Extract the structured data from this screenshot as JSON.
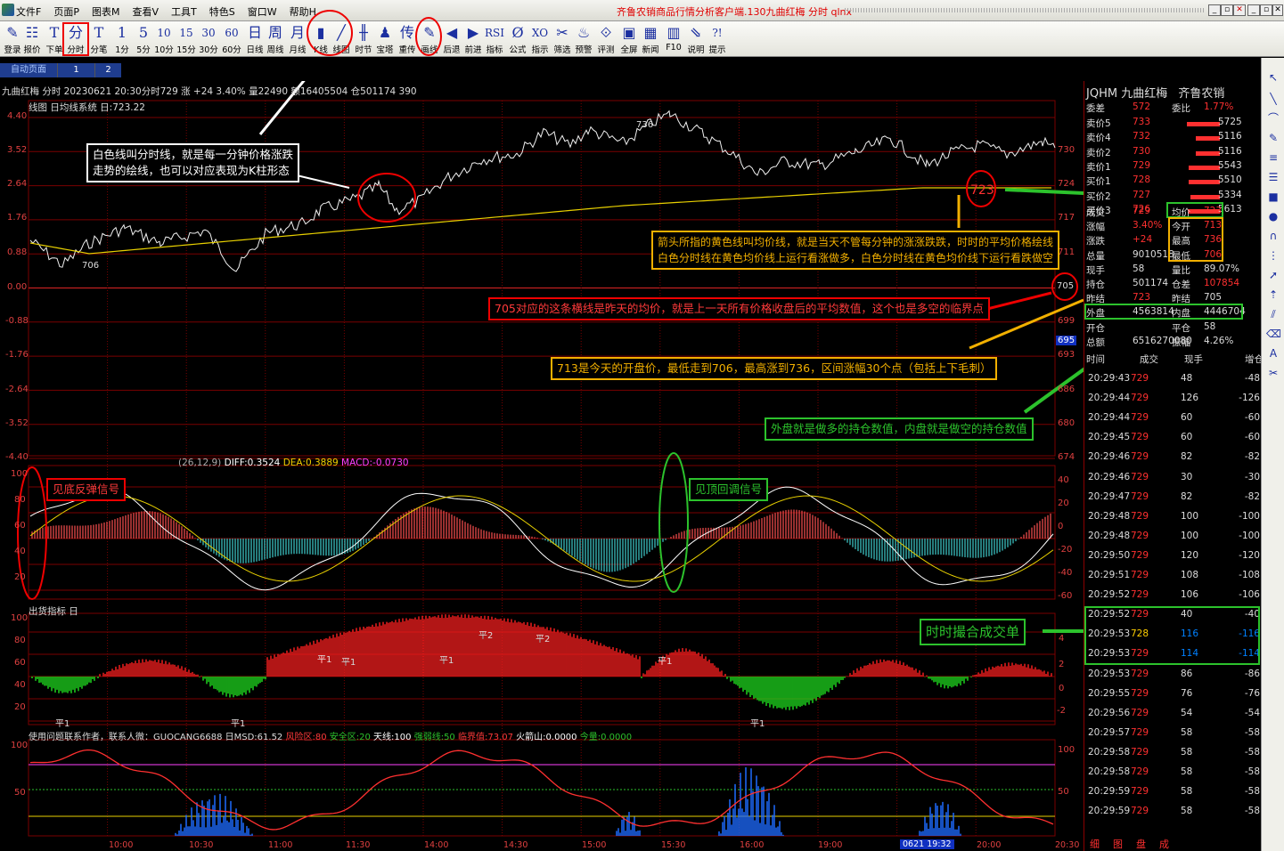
{
  "menu": {
    "items": [
      "文件F",
      "页面P",
      "图表M",
      "查看V",
      "工具T",
      "特色S",
      "窗口W",
      "帮助H"
    ],
    "window_title": "齐鲁农销商品行情分析客户端.130九曲红梅 分时 qlnx",
    "controls": [
      "_",
      "▫",
      "✕",
      "_",
      "▫",
      "✕"
    ]
  },
  "toolbar": [
    {
      "icon": "login-icon",
      "glyph": "✎",
      "label": "登录"
    },
    {
      "icon": "quote-icon",
      "glyph": "☷",
      "label": "报价"
    },
    {
      "icon": "order-icon",
      "glyph": "T",
      "label": "下单"
    },
    {
      "icon": "intraday-icon",
      "glyph": "分",
      "label": "分时"
    },
    {
      "icon": "tick-icon",
      "glyph": "T",
      "label": "分笔"
    },
    {
      "icon": "k1-icon",
      "glyph": "1",
      "label": "1分"
    },
    {
      "icon": "k5-icon",
      "glyph": "5",
      "label": "5分"
    },
    {
      "icon": "k10-icon",
      "glyph": "10",
      "label": "10分"
    },
    {
      "icon": "k15-icon",
      "glyph": "15",
      "label": "15分"
    },
    {
      "icon": "k30-icon",
      "glyph": "30",
      "label": "30分"
    },
    {
      "icon": "k60-icon",
      "glyph": "60",
      "label": "60分"
    },
    {
      "icon": "day-icon",
      "glyph": "日",
      "label": "日线"
    },
    {
      "icon": "week-icon",
      "glyph": "周",
      "label": "周线"
    },
    {
      "icon": "month-icon",
      "glyph": "月",
      "label": "月线"
    },
    {
      "icon": "kline-icon",
      "glyph": "▮",
      "label": "K线"
    },
    {
      "icon": "line-chart-icon",
      "glyph": "╱",
      "label": "线图"
    },
    {
      "icon": "period-icon",
      "glyph": "╫",
      "label": "时节"
    },
    {
      "icon": "tower-icon",
      "glyph": "♟",
      "label": "宝塔"
    },
    {
      "icon": "transmit-icon",
      "glyph": "传",
      "label": "重传"
    },
    {
      "icon": "draw-icon",
      "glyph": "✎",
      "label": "画线"
    },
    {
      "icon": "back-icon",
      "glyph": "◀",
      "label": "后退"
    },
    {
      "icon": "forward-icon",
      "glyph": "▶",
      "label": "前进"
    },
    {
      "icon": "indicator-icon",
      "glyph": "RSI",
      "label": "指标"
    },
    {
      "icon": "formula-icon",
      "glyph": "Ø",
      "label": "公式"
    },
    {
      "icon": "hint-icon",
      "glyph": "XO",
      "label": "指示"
    },
    {
      "icon": "filter-icon",
      "glyph": "✂",
      "label": "筛选"
    },
    {
      "icon": "alert-icon",
      "glyph": "♨",
      "label": "预警"
    },
    {
      "icon": "review-icon",
      "glyph": "⟐",
      "label": "评测"
    },
    {
      "icon": "fullscreen-icon",
      "glyph": "▣",
      "label": "全屏"
    },
    {
      "icon": "news-icon",
      "glyph": "▦",
      "label": "新闻"
    },
    {
      "icon": "f10-icon",
      "glyph": "▥",
      "label": "F10"
    },
    {
      "icon": "explain-icon",
      "glyph": "⇘",
      "label": "说明"
    },
    {
      "icon": "help-icon",
      "glyph": "?!",
      "label": "提示"
    }
  ],
  "tabs": {
    "auto": "自动页面",
    "one": "1",
    "two": "2"
  },
  "chart_header": {
    "main": "九曲红梅 分时  20230621 20:30分时729 涨 +24 3.40% 量22490 额16405504 仓501174 390",
    "sub": "线图 日均线系统 日:723.22",
    "macd_label": "(26,12,9)",
    "macd_diff": "DIFF:0.3524",
    "macd_dea": "DEA:0.3889",
    "macd_macd": "MACD:-0.0730",
    "ship_label": "出货指标 日",
    "bottom_label": "使用问题联系作者，联系人微：GUOCANG6688 日MSD:61.52",
    "bottom_risk": "风险区:80",
    "bottom_safe": "安全区:20",
    "bottom_sky": "天线:100",
    "bottom_strong": "强弱线:50",
    "bottom_crit": "临界值:73.07",
    "bottom_fire": "火箭山:0.0000",
    "bottom_today": "今量:0.0000"
  },
  "price_axis": {
    "left_pct": [
      "4.40",
      "3.52",
      "2.64",
      "1.76",
      "0.88",
      "0.00",
      "-0.88",
      "-1.76",
      "-2.64",
      "-3.52",
      "-4.40"
    ],
    "right_price": [
      "730",
      "724",
      "717",
      "711",
      "705",
      "699",
      "693",
      "686",
      "680",
      "674"
    ],
    "current": "695"
  },
  "macd_axis": {
    "left": [
      "100",
      "80",
      "60",
      "40",
      "20"
    ],
    "right": [
      "40",
      "20",
      "0",
      "-20",
      "-40",
      "-60"
    ]
  },
  "ship_axis": {
    "left": [
      "100",
      "80",
      "60",
      "40",
      "20"
    ],
    "right": [
      "4",
      "2",
      "0",
      "-2"
    ]
  },
  "msd_axis": {
    "left": [
      "100",
      "50"
    ],
    "right": [
      "100",
      "50"
    ]
  },
  "time_axis": [
    "10:00",
    "10:30",
    "11:00",
    "11:30",
    "14:00",
    "14:30",
    "15:00",
    "15:30",
    "16:00",
    "19:00",
    "0621 19:32",
    "20:00",
    "20:30"
  ],
  "chart_markers": {
    "low": "706",
    "high": "736",
    "ping1": "平1",
    "ping2": "平2"
  },
  "annotations": {
    "white_line": [
      "白色线叫分时线，就是每一分钟价格涨跌",
      "走势的绘线，也可以对应表现为K柱形态"
    ],
    "yellow_line": [
      "箭头所指的黄色线叫均价线，就是当天不管每分钟的涨涨跌跌，时时的平均价格绘线",
      "白色分时线在黄色均价线上运行看涨做多，白色分时线在黄色均价线下运行看跌做空"
    ],
    "red_705": "705对应的这条横线是昨天的均价，就是上一天所有价格收盘后的平均数值，这个也是多空的临界点",
    "open_info": "713是今天的开盘价，最低走到706，最高涨到736，区间涨幅30个点（包括上下毛刺）",
    "in_out": "外盘就是做多的持仓数值，内盘就是做空的持仓数值",
    "bottom_signal": "见底反弹信号",
    "top_signal": "见顶回调信号",
    "match": "时时撮合成交单",
    "circle_723": "723",
    "circle_705": "705"
  },
  "quote": {
    "code": "JQHM",
    "name": "九曲红梅",
    "exchange": "齐鲁农销",
    "wei_cha_label": "委差",
    "wei_cha": "572",
    "wei_bi_label": "委比",
    "wei_bi": "1.77%",
    "asks": [
      {
        "label": "卖价5",
        "price": "733",
        "vol": "5725",
        "bar": 0.74
      },
      {
        "label": "卖价4",
        "price": "732",
        "vol": "5116",
        "bar": 0.55
      },
      {
        "label": "卖价2",
        "price": "730",
        "vol": "5116",
        "bar": 0.55
      },
      {
        "label": "卖价1",
        "price": "729",
        "vol": "5543",
        "bar": 0.7
      },
      {
        "label": "买价1",
        "price": "728",
        "vol": "5510",
        "bar": 0.7
      },
      {
        "label": "买价2",
        "price": "727",
        "vol": "5334",
        "bar": 0.66
      },
      {
        "label": "买价3",
        "price": "726",
        "vol": "5613",
        "bar": 0.72
      }
    ],
    "stats": [
      {
        "l1": "成交",
        "v1": "729",
        "l2": "均价",
        "v2": "723"
      },
      {
        "l1": "涨幅",
        "v1": "3.40%",
        "l2": "今开",
        "v2": "713"
      },
      {
        "l1": "涨跌",
        "v1": "+24",
        "l2": "最高",
        "v2": "736"
      },
      {
        "l1": "总量",
        "v1": "9010518",
        "l2": "最低",
        "v2": "706"
      },
      {
        "l1": "现手",
        "v1": "58",
        "l2": "量比",
        "v2": "89.07%"
      },
      {
        "l1": "持仓",
        "v1": "501174",
        "l2": "仓差",
        "v2": "107854"
      },
      {
        "l1": "昨结",
        "v1": "723",
        "l2": "昨结",
        "v2": "705"
      },
      {
        "l1": "外盘",
        "v1": "4563814",
        "l2": "内盘",
        "v2": "4446704"
      },
      {
        "l1": "开仓",
        "v1": "",
        "l2": "平仓",
        "v2": "58"
      },
      {
        "l1": "总额",
        "v1": "6516270080",
        "l2": "振幅",
        "v2": "4.26%"
      }
    ],
    "tick_headers": [
      "时间",
      "成交",
      "现手",
      "增仓"
    ],
    "ticks": [
      [
        "20:29:43",
        "729",
        "48",
        "-48"
      ],
      [
        "20:29:44",
        "729",
        "126",
        "-126"
      ],
      [
        "20:29:44",
        "729",
        "60",
        "-60"
      ],
      [
        "20:29:45",
        "729",
        "60",
        "-60"
      ],
      [
        "20:29:46",
        "729",
        "82",
        "-82"
      ],
      [
        "20:29:46",
        "729",
        "30",
        "-30"
      ],
      [
        "20:29:47",
        "729",
        "82",
        "-82"
      ],
      [
        "20:29:48",
        "729",
        "100",
        "-100"
      ],
      [
        "20:29:48",
        "729",
        "100",
        "-100"
      ],
      [
        "20:29:50",
        "729",
        "120",
        "-120"
      ],
      [
        "20:29:51",
        "729",
        "108",
        "-108"
      ],
      [
        "20:29:52",
        "729",
        "106",
        "-106"
      ],
      [
        "20:29:52",
        "729",
        "40",
        "-40"
      ],
      [
        "20:29:53",
        "728",
        "116",
        "-116"
      ],
      [
        "20:29:53",
        "729",
        "114",
        "-114"
      ],
      [
        "20:29:53",
        "729",
        "86",
        "-86"
      ],
      [
        "20:29:55",
        "729",
        "76",
        "-76"
      ],
      [
        "20:29:56",
        "729",
        "54",
        "-54"
      ],
      [
        "20:29:57",
        "729",
        "58",
        "-58"
      ],
      [
        "20:29:58",
        "729",
        "58",
        "-58"
      ],
      [
        "20:29:58",
        "729",
        "58",
        "-58"
      ],
      [
        "20:29:59",
        "729",
        "58",
        "-58"
      ],
      [
        "20:29:59",
        "729",
        "58",
        "-58"
      ]
    ],
    "bottom_tabs": [
      "细",
      "图",
      "盘",
      "成"
    ]
  },
  "colors": {
    "up": "#ff3030",
    "down": "#00e0e0",
    "avg_line": "#e8d000",
    "grid": "#7a0000",
    "text_red": "#e04040",
    "green": "#2cc22c"
  }
}
